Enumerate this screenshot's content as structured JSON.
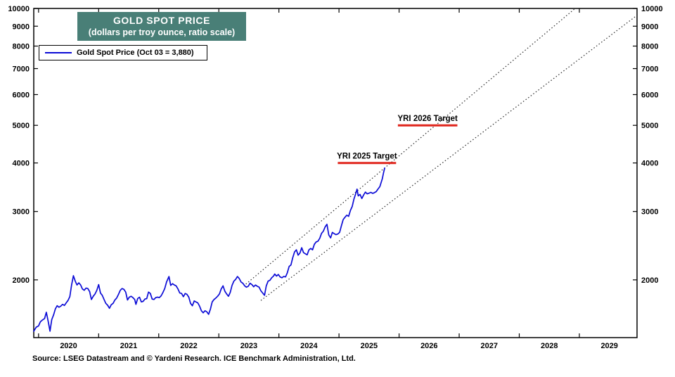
{
  "colors": {
    "series": "#0b0bd6",
    "target": "#e0251c",
    "channel": "#2a2a2a",
    "axis": "#000000",
    "title_bg": "#497f77",
    "title_fg": "#ffffff"
  },
  "chart_data": {
    "type": "line",
    "title": "GOLD SPOT PRICE",
    "subtitle": "(dollars per troy ounce, ratio scale)",
    "legend": [
      {
        "label": "Gold Spot Price (Oct 03 = 3,880)",
        "color": "#0b0bd6"
      }
    ],
    "source_note": "Source: LSEG Datastream and © Yardeni Research. ICE Benchmark Administration, Ltd.",
    "y_scale": "log",
    "grid": false,
    "xlim": [
      2019.92,
      2029.96
    ],
    "ylim": [
      1420,
      10000
    ],
    "x_ticks": [
      2020,
      2021,
      2022,
      2023,
      2024,
      2025,
      2026,
      2027,
      2028,
      2029
    ],
    "y_ticks": [
      2000,
      3000,
      4000,
      5000,
      6000,
      7000,
      8000,
      9000,
      10000
    ],
    "series": [
      {
        "name": "Gold Spot Price",
        "color": "#0b0bd6",
        "points": [
          [
            2019.92,
            1475
          ],
          [
            2019.96,
            1510
          ],
          [
            2020.0,
            1522
          ],
          [
            2020.03,
            1560
          ],
          [
            2020.06,
            1575
          ],
          [
            2020.1,
            1590
          ],
          [
            2020.13,
            1650
          ],
          [
            2020.16,
            1565
          ],
          [
            2020.19,
            1475
          ],
          [
            2020.22,
            1580
          ],
          [
            2020.25,
            1625
          ],
          [
            2020.28,
            1685
          ],
          [
            2020.31,
            1715
          ],
          [
            2020.34,
            1700
          ],
          [
            2020.37,
            1712
          ],
          [
            2020.4,
            1730
          ],
          [
            2020.43,
            1718
          ],
          [
            2020.46,
            1745
          ],
          [
            2020.49,
            1770
          ],
          [
            2020.52,
            1810
          ],
          [
            2020.55,
            1940
          ],
          [
            2020.58,
            2050
          ],
          [
            2020.61,
            1985
          ],
          [
            2020.64,
            1940
          ],
          [
            2020.67,
            1965
          ],
          [
            2020.7,
            1940
          ],
          [
            2020.73,
            1895
          ],
          [
            2020.76,
            1880
          ],
          [
            2020.79,
            1905
          ],
          [
            2020.82,
            1900
          ],
          [
            2020.85,
            1865
          ],
          [
            2020.88,
            1780
          ],
          [
            2020.91,
            1815
          ],
          [
            2020.94,
            1840
          ],
          [
            2020.97,
            1880
          ],
          [
            2021.0,
            1945
          ],
          [
            2021.03,
            1850
          ],
          [
            2021.06,
            1825
          ],
          [
            2021.09,
            1780
          ],
          [
            2021.12,
            1740
          ],
          [
            2021.15,
            1720
          ],
          [
            2021.18,
            1690
          ],
          [
            2021.21,
            1725
          ],
          [
            2021.24,
            1740
          ],
          [
            2021.27,
            1775
          ],
          [
            2021.3,
            1795
          ],
          [
            2021.33,
            1835
          ],
          [
            2021.36,
            1880
          ],
          [
            2021.39,
            1900
          ],
          [
            2021.42,
            1890
          ],
          [
            2021.45,
            1860
          ],
          [
            2021.48,
            1775
          ],
          [
            2021.51,
            1805
          ],
          [
            2021.54,
            1815
          ],
          [
            2021.57,
            1800
          ],
          [
            2021.6,
            1780
          ],
          [
            2021.62,
            1730
          ],
          [
            2021.65,
            1790
          ],
          [
            2021.68,
            1805
          ],
          [
            2021.71,
            1755
          ],
          [
            2021.74,
            1760
          ],
          [
            2021.77,
            1785
          ],
          [
            2021.8,
            1790
          ],
          [
            2021.83,
            1860
          ],
          [
            2021.86,
            1845
          ],
          [
            2021.89,
            1785
          ],
          [
            2021.92,
            1780
          ],
          [
            2021.95,
            1800
          ],
          [
            2021.98,
            1805
          ],
          [
            2022.01,
            1800
          ],
          [
            2022.04,
            1820
          ],
          [
            2022.07,
            1855
          ],
          [
            2022.1,
            1900
          ],
          [
            2022.13,
            1975
          ],
          [
            2022.17,
            2040
          ],
          [
            2022.2,
            1935
          ],
          [
            2022.23,
            1955
          ],
          [
            2022.26,
            1940
          ],
          [
            2022.29,
            1930
          ],
          [
            2022.32,
            1895
          ],
          [
            2022.35,
            1850
          ],
          [
            2022.38,
            1845
          ],
          [
            2022.41,
            1810
          ],
          [
            2022.44,
            1845
          ],
          [
            2022.47,
            1835
          ],
          [
            2022.5,
            1805
          ],
          [
            2022.53,
            1740
          ],
          [
            2022.56,
            1715
          ],
          [
            2022.59,
            1765
          ],
          [
            2022.62,
            1755
          ],
          [
            2022.65,
            1745
          ],
          [
            2022.68,
            1710
          ],
          [
            2022.71,
            1665
          ],
          [
            2022.74,
            1645
          ],
          [
            2022.77,
            1665
          ],
          [
            2022.8,
            1655
          ],
          [
            2022.83,
            1630
          ],
          [
            2022.86,
            1680
          ],
          [
            2022.89,
            1755
          ],
          [
            2022.92,
            1780
          ],
          [
            2022.95,
            1795
          ],
          [
            2022.98,
            1815
          ],
          [
            2023.01,
            1840
          ],
          [
            2023.04,
            1895
          ],
          [
            2023.07,
            1930
          ],
          [
            2023.1,
            1870
          ],
          [
            2023.13,
            1840
          ],
          [
            2023.16,
            1815
          ],
          [
            2023.19,
            1855
          ],
          [
            2023.22,
            1935
          ],
          [
            2023.25,
            1985
          ],
          [
            2023.28,
            2005
          ],
          [
            2023.31,
            2040
          ],
          [
            2023.34,
            2015
          ],
          [
            2023.37,
            1975
          ],
          [
            2023.4,
            1960
          ],
          [
            2023.43,
            1930
          ],
          [
            2023.46,
            1915
          ],
          [
            2023.49,
            1925
          ],
          [
            2023.52,
            1960
          ],
          [
            2023.55,
            1945
          ],
          [
            2023.58,
            1920
          ],
          [
            2023.61,
            1940
          ],
          [
            2023.64,
            1925
          ],
          [
            2023.67,
            1915
          ],
          [
            2023.7,
            1875
          ],
          [
            2023.73,
            1850
          ],
          [
            2023.76,
            1825
          ],
          [
            2023.79,
            1930
          ],
          [
            2023.82,
            1985
          ],
          [
            2023.85,
            1995
          ],
          [
            2023.88,
            2025
          ],
          [
            2023.91,
            2045
          ],
          [
            2023.93,
            2070
          ],
          [
            2023.96,
            2045
          ],
          [
            2023.99,
            2065
          ],
          [
            2024.02,
            2035
          ],
          [
            2024.05,
            2025
          ],
          [
            2024.08,
            2040
          ],
          [
            2024.11,
            2035
          ],
          [
            2024.14,
            2085
          ],
          [
            2024.17,
            2165
          ],
          [
            2024.2,
            2185
          ],
          [
            2024.23,
            2280
          ],
          [
            2024.26,
            2360
          ],
          [
            2024.29,
            2390
          ],
          [
            2024.32,
            2315
          ],
          [
            2024.35,
            2345
          ],
          [
            2024.38,
            2420
          ],
          [
            2024.41,
            2350
          ],
          [
            2024.44,
            2335
          ],
          [
            2024.47,
            2320
          ],
          [
            2024.5,
            2390
          ],
          [
            2024.53,
            2410
          ],
          [
            2024.56,
            2390
          ],
          [
            2024.59,
            2470
          ],
          [
            2024.62,
            2505
          ],
          [
            2024.65,
            2515
          ],
          [
            2024.68,
            2560
          ],
          [
            2024.71,
            2635
          ],
          [
            2024.74,
            2670
          ],
          [
            2024.77,
            2740
          ],
          [
            2024.8,
            2780
          ],
          [
            2024.83,
            2610
          ],
          [
            2024.86,
            2565
          ],
          [
            2024.89,
            2650
          ],
          [
            2024.92,
            2630
          ],
          [
            2024.95,
            2615
          ],
          [
            2024.98,
            2625
          ],
          [
            2025.01,
            2650
          ],
          [
            2025.04,
            2755
          ],
          [
            2025.07,
            2860
          ],
          [
            2025.1,
            2900
          ],
          [
            2025.13,
            2935
          ],
          [
            2025.16,
            2915
          ],
          [
            2025.19,
            3020
          ],
          [
            2025.22,
            3090
          ],
          [
            2025.25,
            3235
          ],
          [
            2025.28,
            3340
          ],
          [
            2025.3,
            3425
          ],
          [
            2025.32,
            3290
          ],
          [
            2025.35,
            3320
          ],
          [
            2025.38,
            3240
          ],
          [
            2025.41,
            3310
          ],
          [
            2025.44,
            3365
          ],
          [
            2025.47,
            3330
          ],
          [
            2025.5,
            3345
          ],
          [
            2025.53,
            3360
          ],
          [
            2025.56,
            3340
          ],
          [
            2025.59,
            3355
          ],
          [
            2025.62,
            3375
          ],
          [
            2025.65,
            3430
          ],
          [
            2025.68,
            3475
          ],
          [
            2025.7,
            3555
          ],
          [
            2025.72,
            3640
          ],
          [
            2025.74,
            3770
          ],
          [
            2025.76,
            3880
          ]
        ]
      }
    ],
    "trend_channel": [
      {
        "name": "upper-channel-line",
        "t1": 2023.45,
        "v1": 1950,
        "t2": 2028.93,
        "v2": 10000
      },
      {
        "name": "lower-channel-line",
        "t1": 2023.7,
        "v1": 1770,
        "t2": 2029.96,
        "v2": 9600
      }
    ],
    "targets": [
      {
        "label": "YRI 2025 Target",
        "value": 4000,
        "t_start": 2024.98,
        "t_end": 2025.95
      },
      {
        "label": "YRI 2026 Target",
        "value": 5000,
        "t_start": 2025.98,
        "t_end": 2026.97
      }
    ]
  }
}
